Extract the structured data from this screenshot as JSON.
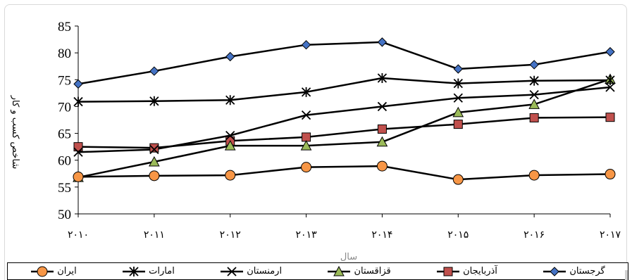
{
  "chart_data": {
    "type": "line",
    "title": "",
    "xlabel": "سال",
    "ylabel": "شاخص کسب و کار",
    "ylim": [
      50,
      85
    ],
    "yticks": [
      50,
      55,
      60,
      65,
      70,
      75,
      80,
      85
    ],
    "categories": [
      "۲۰۱۰",
      "۲۰۱۱",
      "۲۰۱۲",
      "۲۰۱۳",
      "۲۰۱۴",
      "۲۰۱۵",
      "۲۰۱۶",
      "۲۰۱۷"
    ],
    "grid": false,
    "legend_position": "bottom",
    "series": [
      {
        "name": "گرجستان",
        "marker": "diamond",
        "color": "#4472c4",
        "values": [
          74.2,
          76.6,
          79.3,
          81.5,
          82.0,
          77.0,
          77.8,
          80.2
        ]
      },
      {
        "name": "آذربایجان",
        "marker": "square",
        "color": "#c0504d",
        "values": [
          62.5,
          62.3,
          63.6,
          64.3,
          65.8,
          66.7,
          67.9,
          68.0
        ]
      },
      {
        "name": "قزاقستان",
        "marker": "triangle",
        "color": "#9bbb59",
        "values": [
          56.8,
          59.7,
          62.7,
          62.7,
          63.4,
          68.9,
          70.4,
          75.1
        ]
      },
      {
        "name": "ارمنستان",
        "marker": "x",
        "color": "#000000",
        "values": [
          61.5,
          62.0,
          64.6,
          68.4,
          70.0,
          71.6,
          72.2,
          73.6
        ]
      },
      {
        "name": "امارات",
        "marker": "star",
        "color": "#000000",
        "values": [
          70.9,
          71.0,
          71.2,
          72.7,
          75.3,
          74.3,
          74.8,
          74.9
        ]
      },
      {
        "name": "ایران",
        "marker": "circle",
        "color": "#f79646",
        "values": [
          56.9,
          57.1,
          57.2,
          58.7,
          58.9,
          56.4,
          57.2,
          57.4
        ]
      }
    ]
  }
}
